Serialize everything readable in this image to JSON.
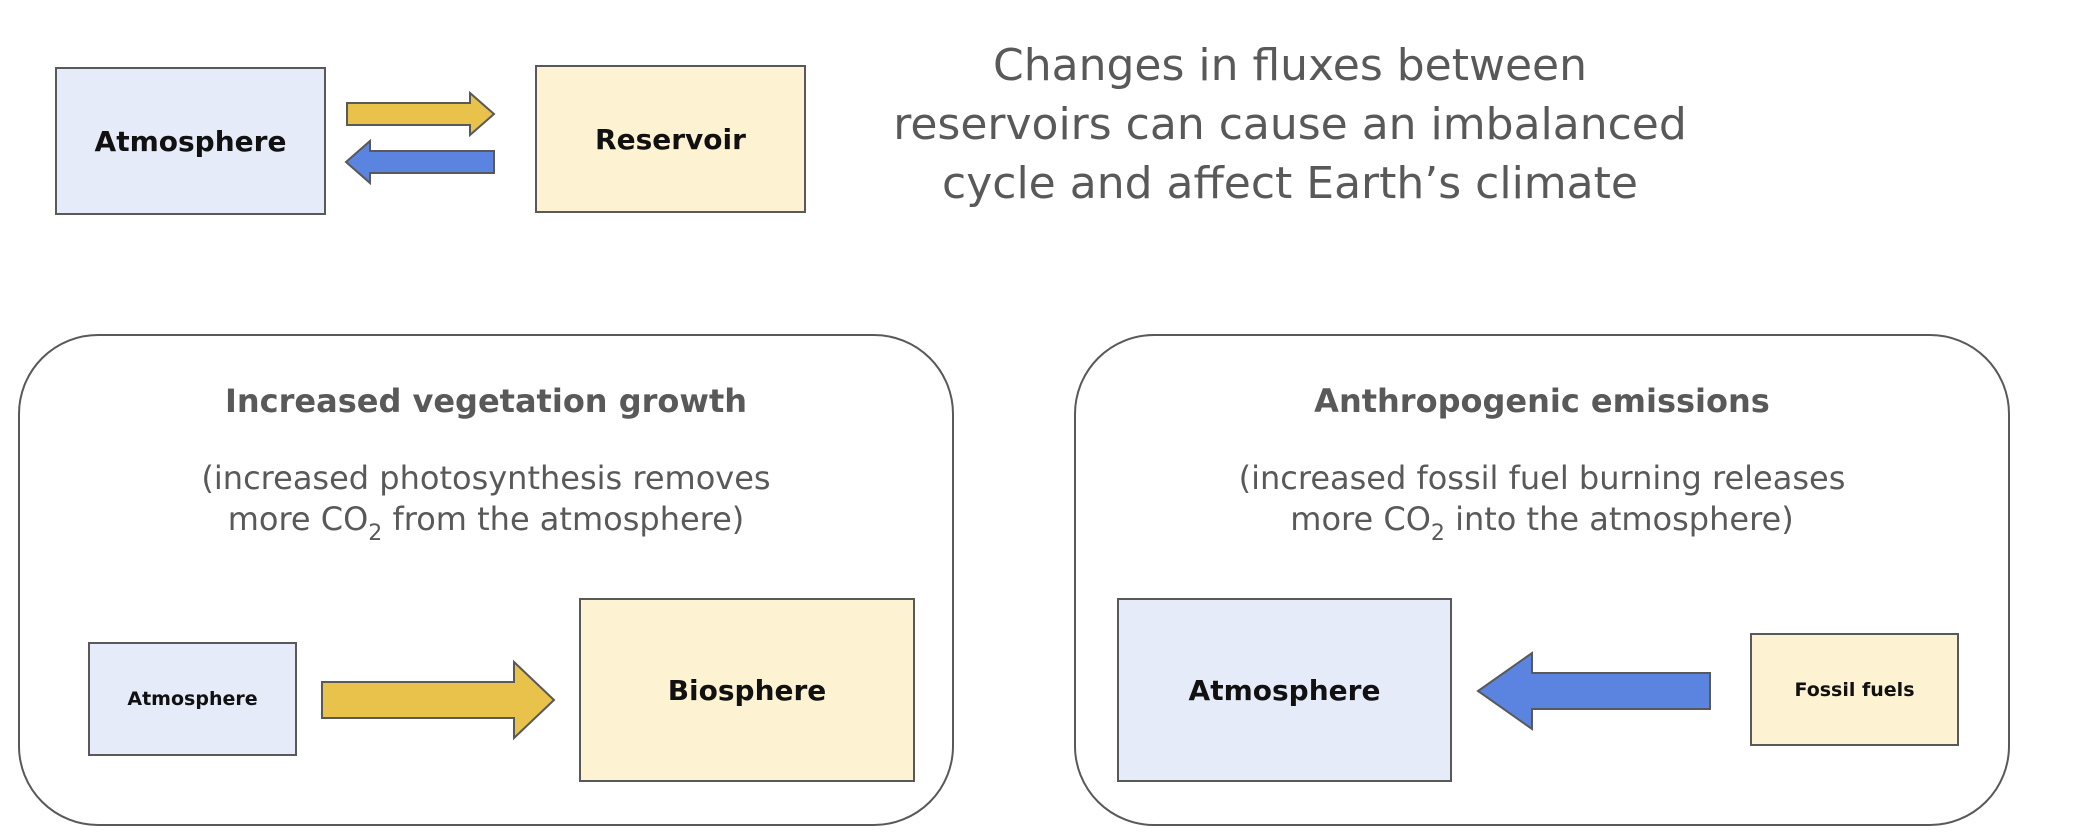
{
  "header": {
    "title_lines": [
      "Changes in fluxes between",
      "reservoirs can cause an imbalanced",
      "cycle and affect Earth’s climate"
    ]
  },
  "top_diagram": {
    "left_box": "Atmosphere",
    "right_box": "Reservoir"
  },
  "panel_left": {
    "heading": "Increased vegetation growth",
    "desc_line1": "(increased photosynthesis removes",
    "desc_line2_pre": "more CO",
    "desc_line2_sub": "2",
    "desc_line2_post": " from the atmosphere)",
    "source_box": "Atmosphere",
    "target_box": "Biosphere"
  },
  "panel_right": {
    "heading": "Anthropogenic emissions",
    "desc_line1": "(increased fossil fuel burning releases",
    "desc_line2_pre": "more CO",
    "desc_line2_sub": "2",
    "desc_line2_post": " into the atmosphere)",
    "target_box": "Atmosphere",
    "source_box": "Fossil fuels"
  },
  "colors": {
    "atmosphere_fill": "#e5ebf8",
    "reservoir_fill": "#fdf2d2",
    "yellow_arrow": "#e9c24c",
    "blue_arrow": "#5b83e0",
    "outline": "#595959"
  }
}
